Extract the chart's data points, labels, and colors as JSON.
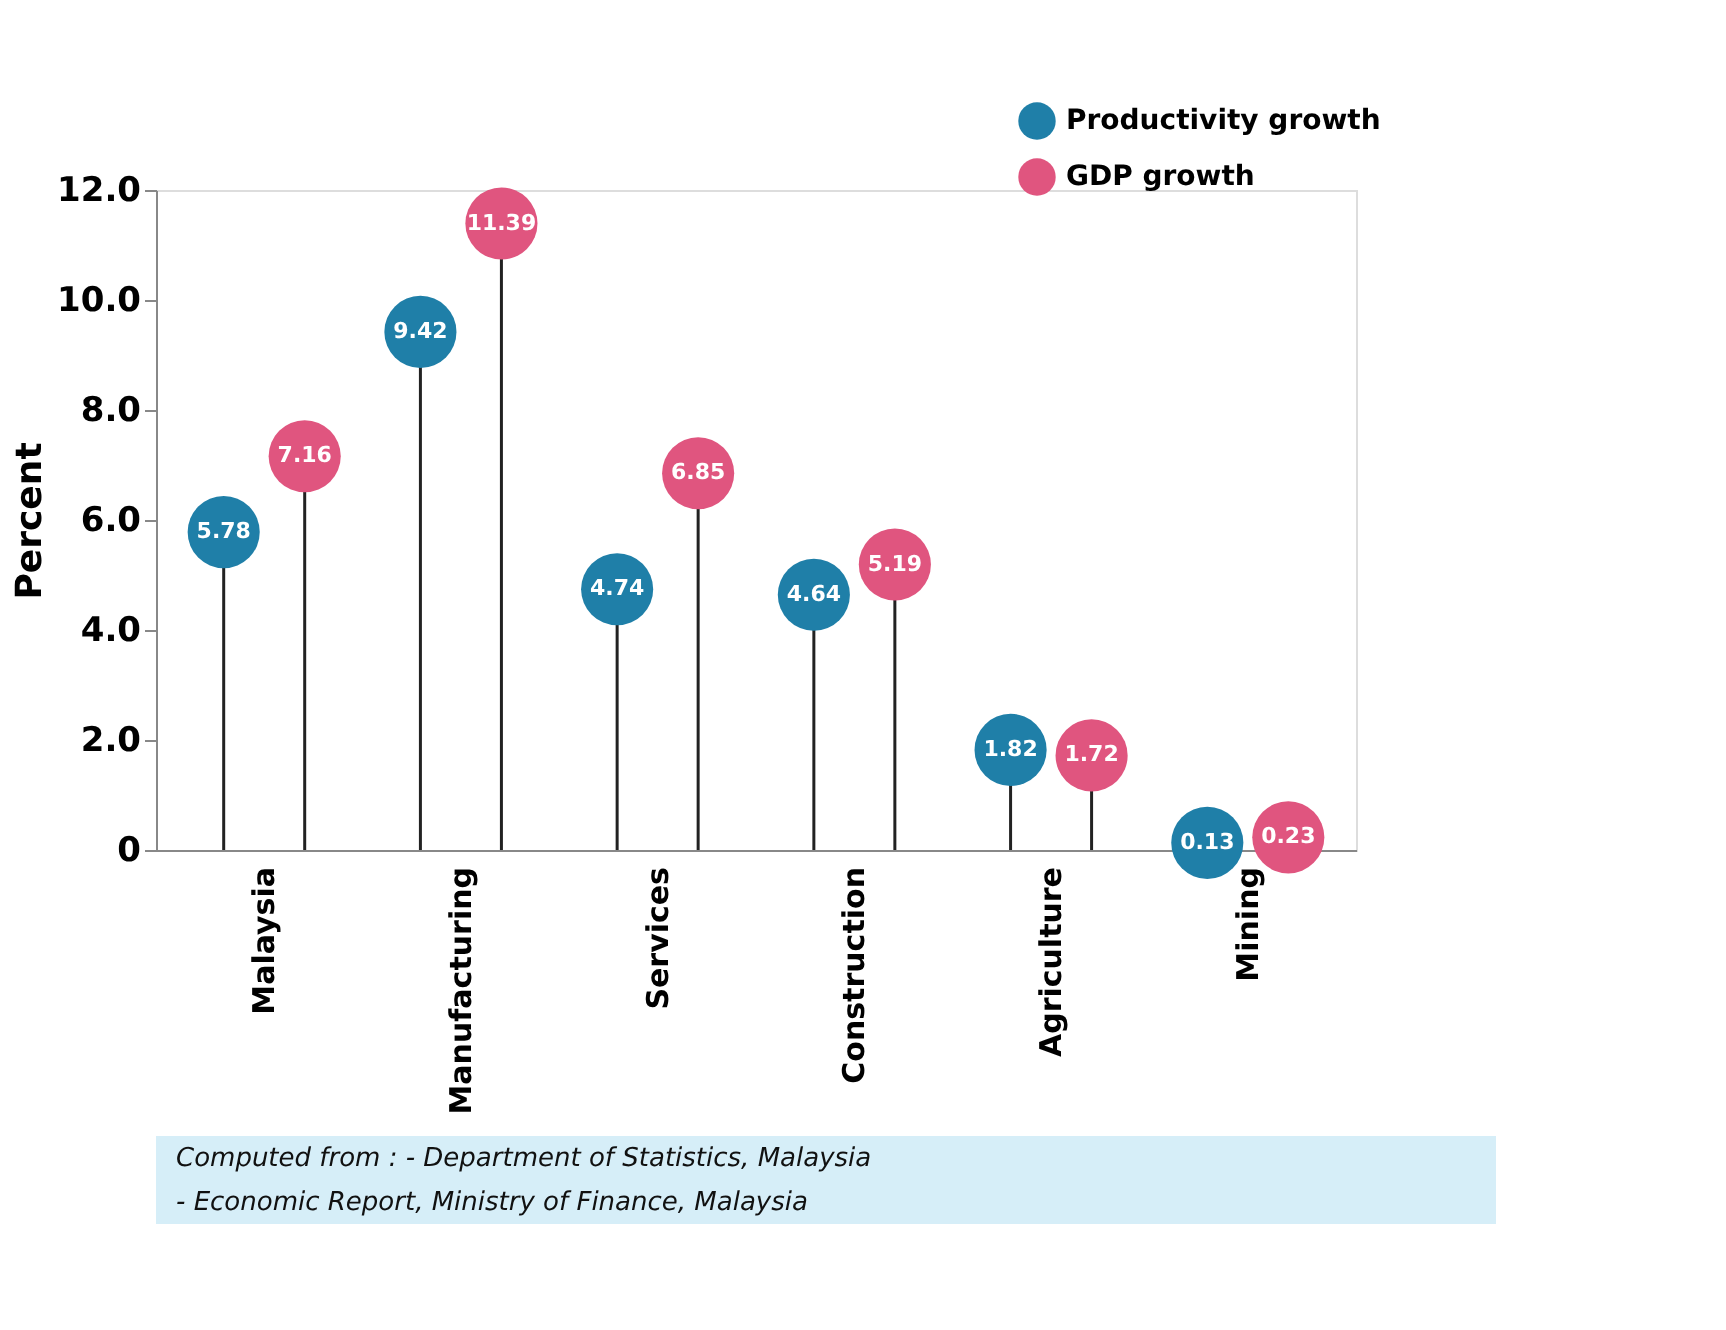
{
  "chart_data": {
    "type": "lollipop",
    "ylabel": "Percent",
    "categories": [
      "Malaysia",
      "Manufacturing",
      "Services",
      "Construction",
      "Agriculture",
      "Mining"
    ],
    "series": [
      {
        "name": "Productivity growth",
        "color": "#1f7fa8",
        "values": [
          5.78,
          9.42,
          4.74,
          4.64,
          1.82,
          0.13
        ]
      },
      {
        "name": "GDP growth",
        "color": "#e0557f",
        "values": [
          7.16,
          11.39,
          6.85,
          5.19,
          1.72,
          0.23
        ]
      }
    ],
    "ylim": [
      0,
      12
    ],
    "yticks": [
      0,
      {
        "value": 2,
        "label": "2.0"
      },
      {
        "value": 4,
        "label": "4.0"
      },
      {
        "value": 6,
        "label": "6.0"
      },
      {
        "value": 8,
        "label": "8.0"
      },
      {
        "value": 10,
        "label": "10.0"
      },
      {
        "value": 12,
        "label": "12.0"
      }
    ],
    "data_labels": true,
    "legend": "top right",
    "grid": false,
    "marker": "circle",
    "annotations": [
      "Computed from :  -  Department of Statistics, Malaysia",
      "-  Economic Report, Ministry of Finance, Malaysia"
    ]
  }
}
